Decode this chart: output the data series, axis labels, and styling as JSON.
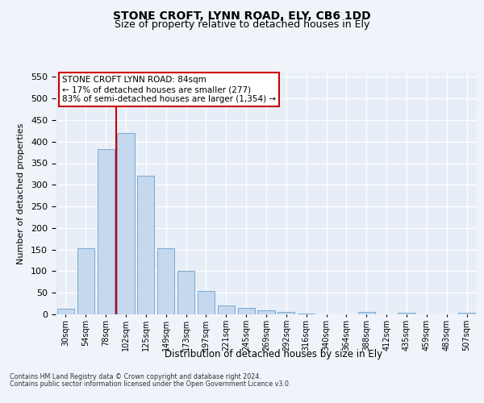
{
  "title1": "STONE CROFT, LYNN ROAD, ELY, CB6 1DD",
  "title2": "Size of property relative to detached houses in Ely",
  "xlabel": "Distribution of detached houses by size in Ely",
  "ylabel": "Number of detached properties",
  "categories": [
    "30sqm",
    "54sqm",
    "78sqm",
    "102sqm",
    "125sqm",
    "149sqm",
    "173sqm",
    "197sqm",
    "221sqm",
    "245sqm",
    "269sqm",
    "292sqm",
    "316sqm",
    "340sqm",
    "364sqm",
    "388sqm",
    "412sqm",
    "435sqm",
    "459sqm",
    "483sqm",
    "507sqm"
  ],
  "values": [
    14,
    154,
    383,
    420,
    322,
    153,
    100,
    55,
    20,
    15,
    9,
    5,
    2,
    0,
    0,
    5,
    0,
    4,
    0,
    0,
    4
  ],
  "bar_color": "#c5d8ee",
  "bar_edge_color": "#7aaad0",
  "vline_color": "#cc0000",
  "vline_x_index": 2.5,
  "annotation_line0": "STONE CROFT LYNN ROAD: 84sqm",
  "annotation_line1": "← 17% of detached houses are smaller (277)",
  "annotation_line2": "83% of semi-detached houses are larger (1,354) →",
  "ylim": [
    0,
    560
  ],
  "yticks": [
    0,
    50,
    100,
    150,
    200,
    250,
    300,
    350,
    400,
    450,
    500,
    550
  ],
  "footnote1": "Contains HM Land Registry data © Crown copyright and database right 2024.",
  "footnote2": "Contains public sector information licensed under the Open Government Licence v3.0.",
  "fig_bg": "#f0f4fa",
  "plot_bg": "#e8eef8"
}
